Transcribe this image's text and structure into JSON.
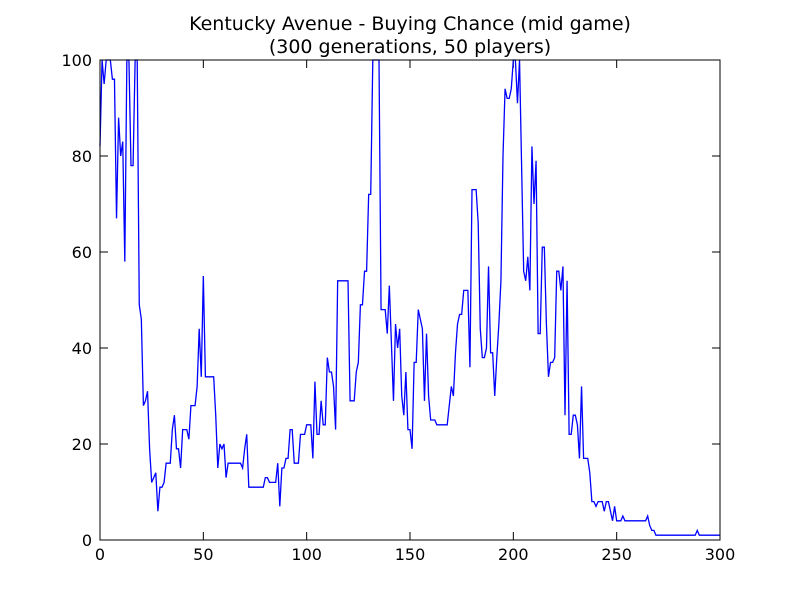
{
  "chart_data": {
    "type": "line",
    "title": "Kentucky Avenue - Buying Chance (mid game)",
    "subtitle": "(300 generations, 50 players)",
    "x": [
      0,
      1,
      2,
      3,
      5,
      6,
      7,
      8,
      9,
      10,
      11,
      12,
      13,
      14,
      15,
      16,
      17,
      18,
      19,
      20,
      21,
      22,
      23,
      24,
      25,
      26,
      27,
      28,
      29,
      30,
      31,
      32,
      34,
      35,
      36,
      37,
      38,
      39,
      40,
      42,
      43,
      44,
      46,
      47,
      48,
      49,
      50,
      51,
      55,
      56,
      57,
      58,
      59,
      60,
      61,
      62,
      68,
      69,
      70,
      71,
      72,
      79,
      80,
      81,
      82,
      85,
      86,
      87,
      88,
      89,
      90,
      91,
      92,
      93,
      94,
      96,
      97,
      99,
      100,
      102,
      103,
      104,
      105,
      106,
      107,
      108,
      109,
      110,
      111,
      112,
      113,
      114,
      115,
      120,
      121,
      123,
      124,
      125,
      126,
      127,
      128,
      129,
      130,
      131,
      132,
      135,
      136,
      138,
      139,
      140,
      141,
      142,
      143,
      144,
      145,
      146,
      147,
      148,
      149,
      150,
      151,
      152,
      153,
      154,
      155,
      156,
      157,
      158,
      159,
      160,
      162,
      163,
      168,
      169,
      170,
      171,
      172,
      173,
      174,
      175,
      176,
      178,
      179,
      180,
      182,
      183,
      184,
      185,
      186,
      187,
      188,
      189,
      190,
      191,
      192,
      193,
      194,
      195,
      196,
      197,
      198,
      199,
      200,
      201,
      202,
      203,
      204,
      205,
      206,
      207,
      208,
      209,
      210,
      211,
      212,
      213,
      214,
      215,
      216,
      217,
      218,
      219,
      220,
      221,
      222,
      223,
      224,
      225,
      226,
      227,
      228,
      229,
      230,
      231,
      232,
      233,
      234,
      236,
      237,
      238,
      239,
      240,
      241,
      243,
      244,
      245,
      246,
      247,
      248,
      249,
      250,
      252,
      253,
      254,
      264,
      265,
      266,
      267,
      268,
      269,
      288,
      289,
      290,
      300
    ],
    "series": [
      {
        "color": "#0000ff",
        "values": [
          82,
          100,
          95,
          100,
          100,
          96,
          96,
          67,
          88,
          80,
          83,
          58,
          100,
          100,
          78,
          78,
          100,
          100,
          49,
          46,
          28,
          29,
          31,
          19,
          12,
          13,
          14,
          6,
          11,
          11,
          12,
          16,
          16,
          23,
          26,
          19,
          19,
          15,
          23,
          23,
          21,
          28,
          28,
          32,
          44,
          34,
          55,
          34,
          34,
          26,
          15,
          20,
          19,
          20,
          13,
          16,
          16,
          15,
          19,
          22,
          11,
          11,
          13,
          13,
          12,
          12,
          16,
          7,
          15,
          15,
          17,
          17,
          23,
          23,
          16,
          16,
          22,
          22,
          24,
          24,
          17,
          33,
          22,
          22,
          29,
          24,
          24,
          38,
          35,
          35,
          32,
          23,
          54,
          54,
          29,
          29,
          35,
          37,
          49,
          49,
          56,
          56,
          72,
          72,
          100,
          100,
          48,
          48,
          43,
          53,
          41,
          29,
          45,
          40,
          44,
          30,
          26,
          35,
          23,
          23,
          19,
          37,
          37,
          48,
          46,
          44,
          29,
          43,
          30,
          25,
          25,
          24,
          24,
          28,
          32,
          30,
          39,
          45,
          47,
          47,
          52,
          52,
          36,
          73,
          73,
          66,
          44,
          38,
          38,
          40,
          57,
          39,
          39,
          30,
          38,
          45,
          54,
          80,
          94,
          92,
          92,
          94,
          100,
          100,
          91,
          100,
          78,
          56,
          54,
          59,
          52,
          82,
          70,
          79,
          43,
          43,
          61,
          61,
          45,
          34,
          37,
          37,
          38,
          56,
          56,
          52,
          57,
          26,
          54,
          22,
          22,
          26,
          26,
          24,
          17,
          32,
          17,
          17,
          14,
          8,
          8,
          7,
          8,
          8,
          6,
          8,
          8,
          6,
          4,
          7,
          4,
          4,
          5,
          4,
          4,
          5,
          3,
          2,
          2,
          1,
          1,
          2,
          1,
          1
        ]
      }
    ],
    "xlim": [
      0,
      300
    ],
    "xticks": [
      0,
      50,
      100,
      150,
      200,
      250,
      300
    ],
    "ylim": [
      0,
      100
    ],
    "yticks": [
      0,
      20,
      40,
      60,
      80,
      100
    ]
  }
}
